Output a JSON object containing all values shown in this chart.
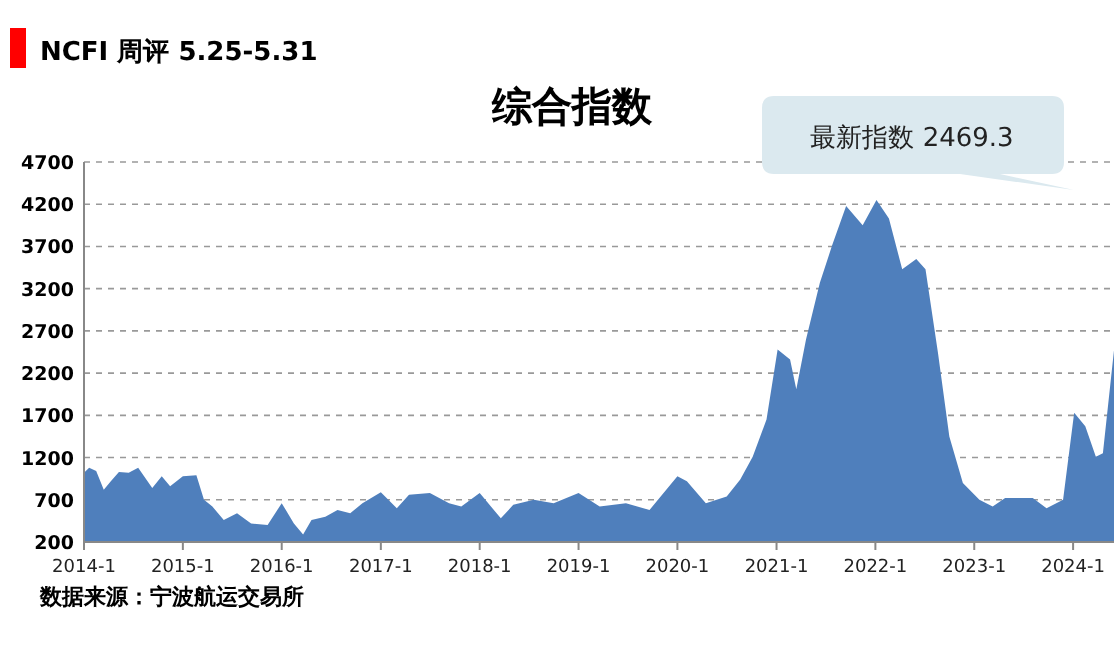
{
  "chart_data": {
    "type": "area",
    "subtitle": "NCFI 周评 5.25-5.31",
    "title": "综合指数",
    "x": [
      "2014-01-01",
      "2014-01-20",
      "2014-02-15",
      "2014-03-15",
      "2014-04-10",
      "2014-05-10",
      "2014-06-15",
      "2014-07-20",
      "2014-09-10",
      "2014-10-15",
      "2014-11-15",
      "2015-01-01",
      "2015-02-20",
      "2015-03-20",
      "2015-04-20",
      "2015-06-01",
      "2015-07-20",
      "2015-09-10",
      "2015-11-10",
      "2016-01-01",
      "2016-02-15",
      "2016-03-20",
      "2016-04-20",
      "2016-06-10",
      "2016-07-25",
      "2016-09-10",
      "2016-10-25",
      "2017-01-01",
      "2017-03-01",
      "2017-04-15",
      "2017-07-01",
      "2017-09-10",
      "2017-10-25",
      "2018-01-01",
      "2018-03-20",
      "2018-05-05",
      "2018-07-20",
      "2018-10-01",
      "2019-01-01",
      "2019-03-20",
      "2019-06-25",
      "2019-09-20",
      "2020-01-01",
      "2020-02-05",
      "2020-04-15",
      "2020-07-01",
      "2020-08-20",
      "2020-10-05",
      "2020-11-25",
      "2021-01-05",
      "2021-02-20",
      "2021-03-15",
      "2021-04-20",
      "2021-06-10",
      "2021-07-25",
      "2021-09-15",
      "2021-11-15",
      "2022-01-05",
      "2022-02-20",
      "2022-04-10",
      "2022-06-01",
      "2022-07-05",
      "2022-08-20",
      "2022-10-01",
      "2022-11-20",
      "2023-01-20",
      "2023-03-10",
      "2023-04-25",
      "2023-08-05",
      "2023-09-25",
      "2023-11-25",
      "2024-01-05",
      "2024-02-15",
      "2024-03-25",
      "2024-04-20",
      "2024-05-31"
    ],
    "series": [
      {
        "color": "#4f7fbc",
        "values": [
          1020,
          1080,
          1040,
          820,
          920,
          1030,
          1020,
          1080,
          840,
          980,
          860,
          980,
          990,
          700,
          620,
          460,
          540,
          420,
          400,
          660,
          420,
          290,
          460,
          500,
          580,
          540,
          660,
          790,
          600,
          760,
          780,
          660,
          620,
          780,
          480,
          640,
          700,
          660,
          780,
          620,
          660,
          580,
          980,
          920,
          660,
          740,
          940,
          1210,
          1650,
          2480,
          2360,
          2010,
          2600,
          3270,
          3710,
          4180,
          3950,
          4250,
          4030,
          3430,
          3550,
          3430,
          2440,
          1450,
          900,
          700,
          620,
          720,
          720,
          600,
          700,
          1730,
          1570,
          1210,
          1250,
          2469.3
        ]
      }
    ],
    "xlim": [
      "2014-01-01",
      "2024-05-31"
    ],
    "xticks": [
      {
        "value": "2014-01-01",
        "label": "2014-1"
      },
      {
        "value": "2015-01-01",
        "label": "2015-1"
      },
      {
        "value": "2016-01-01",
        "label": "2016-1"
      },
      {
        "value": "2017-01-01",
        "label": "2017-1"
      },
      {
        "value": "2018-01-01",
        "label": "2018-1"
      },
      {
        "value": "2019-01-01",
        "label": "2019-1"
      },
      {
        "value": "2020-01-01",
        "label": "2020-1"
      },
      {
        "value": "2021-01-01",
        "label": "2021-1"
      },
      {
        "value": "2022-01-01",
        "label": "2022-1"
      },
      {
        "value": "2023-01-01",
        "label": "2023-1"
      },
      {
        "value": "2024-01-01",
        "label": "2024-1"
      }
    ],
    "ylim": [
      200,
      4700
    ],
    "yticks": [
      200,
      700,
      1200,
      1700,
      2200,
      2700,
      3200,
      3700,
      4200,
      4700
    ],
    "grid": "y",
    "annotations": [
      "最新指数 2469.3",
      "数据来源：宁波航运交易所"
    ]
  }
}
